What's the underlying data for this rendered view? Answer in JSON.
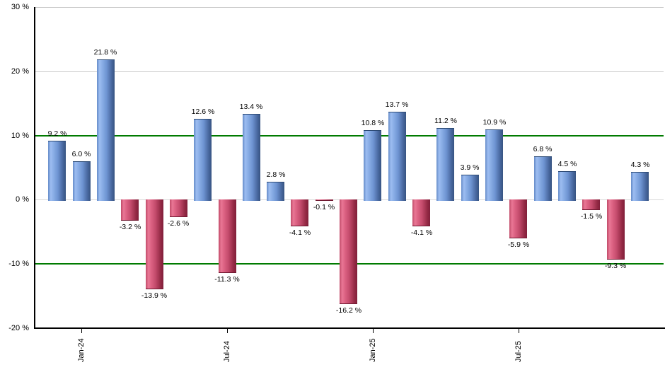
{
  "chart_data": {
    "type": "bar",
    "title": "",
    "xlabel": "",
    "ylabel": "",
    "ylim": [
      -20,
      30
    ],
    "grid": "horizontal",
    "legend": "none",
    "values": [
      9.2,
      6.0,
      21.8,
      -3.2,
      -13.9,
      -2.6,
      12.6,
      -11.3,
      13.4,
      2.8,
      -4.1,
      -0.1,
      -16.2,
      10.8,
      13.7,
      -4.1,
      11.2,
      3.9,
      10.9,
      -5.9,
      6.8,
      4.5,
      -1.5,
      -9.3,
      4.3
    ],
    "bar_labels": [
      "9.2 %",
      "6.0 %",
      "21.8 %",
      "-3.2 %",
      "-13.9 %",
      "-2.6 %",
      "12.6 %",
      "-11.3 %",
      "13.4 %",
      "2.8 %",
      "-4.1 %",
      "-0.1 %",
      "-16.2 %",
      "10.8 %",
      "13.7 %",
      "-4.1 %",
      "11.2 %",
      "3.9 %",
      "10.9 %",
      "-5.9 %",
      "6.8 %",
      "4.5 %",
      "-1.5 %",
      "-9.3 %",
      "4.3 %"
    ],
    "x_tick_labels": [
      {
        "index": 1,
        "label": "Jan-24"
      },
      {
        "index": 7,
        "label": "Jul-24"
      },
      {
        "index": 13,
        "label": "Jan-25"
      },
      {
        "index": 19,
        "label": "Jul-25"
      }
    ],
    "y_ticks": [
      {
        "value": 30,
        "label": "30 %"
      },
      {
        "value": 20,
        "label": "20 %"
      },
      {
        "value": 10,
        "label": "10 %"
      },
      {
        "value": 0,
        "label": "0 %"
      },
      {
        "value": -10,
        "label": "-10 %"
      },
      {
        "value": -20,
        "label": "-20 %"
      }
    ],
    "highlight_gridlines_at": [
      10,
      -10
    ],
    "colors": {
      "positive_bar": "#6d94d4",
      "negative_bar": "#c34766",
      "gridline": "#c9c9c9",
      "zero_line": "#d9d9d9",
      "highlight_gridline": "#007b00",
      "axis": "#000000",
      "label_text": "#000000"
    }
  }
}
